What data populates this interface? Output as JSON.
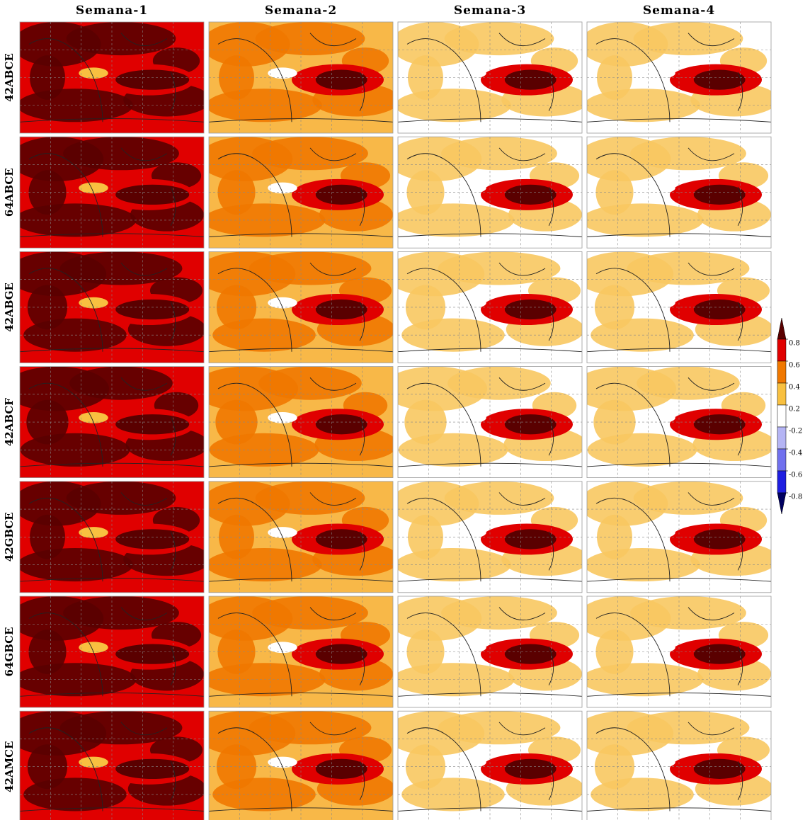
{
  "columns": [
    "Semana-1",
    "Semana-2",
    "Semana-3",
    "Semana-4"
  ],
  "rows": [
    "42ABCE",
    "64ABCE",
    "42ABGE",
    "42ABCF",
    "42GBCE",
    "64GBCE",
    "42AMCE"
  ],
  "colorbar": {
    "ticks": [
      0.8,
      0.6,
      0.4,
      0.2,
      -0.2,
      -0.4,
      -0.6,
      -0.8
    ],
    "colors": [
      "#5a0000",
      "#e00000",
      "#f07800",
      "#f8c040",
      "#ffffff",
      "#b4b4f4",
      "#7070ee",
      "#1e1ee0",
      "#000060"
    ]
  }
}
